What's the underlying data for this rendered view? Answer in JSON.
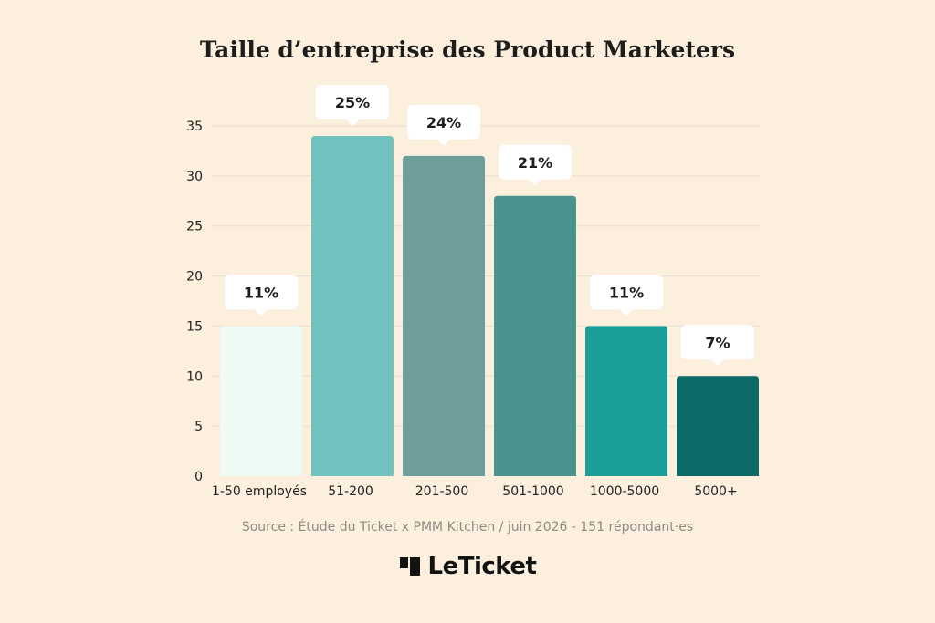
{
  "chart_data": {
    "type": "bar",
    "title": "Taille d’entreprise des Product Marketers",
    "categories": [
      "1-50 employés",
      "51-200",
      "201-500",
      "501-1000",
      "1000-5000",
      "5000+"
    ],
    "values": [
      15,
      34,
      32,
      28,
      15,
      10
    ],
    "data_labels": [
      "11%",
      "25%",
      "24%",
      "21%",
      "11%",
      "7%"
    ],
    "colors": [
      "#eefaf4",
      "#72c3c0",
      "#6e9e9b",
      "#4a9490",
      "#1c9e98",
      "#0c6b66"
    ],
    "ylim": [
      0,
      35
    ],
    "yticks": [
      0,
      5,
      10,
      15,
      20,
      25,
      30,
      35
    ],
    "grid": true,
    "xlabel": "",
    "ylabel": ""
  },
  "source": "Source : Étude du Ticket x PMM Kitchen / juin 2026 - 151 répondant·es",
  "brand": {
    "name": "LeTicket",
    "icon": "leticket-logo-icon"
  }
}
